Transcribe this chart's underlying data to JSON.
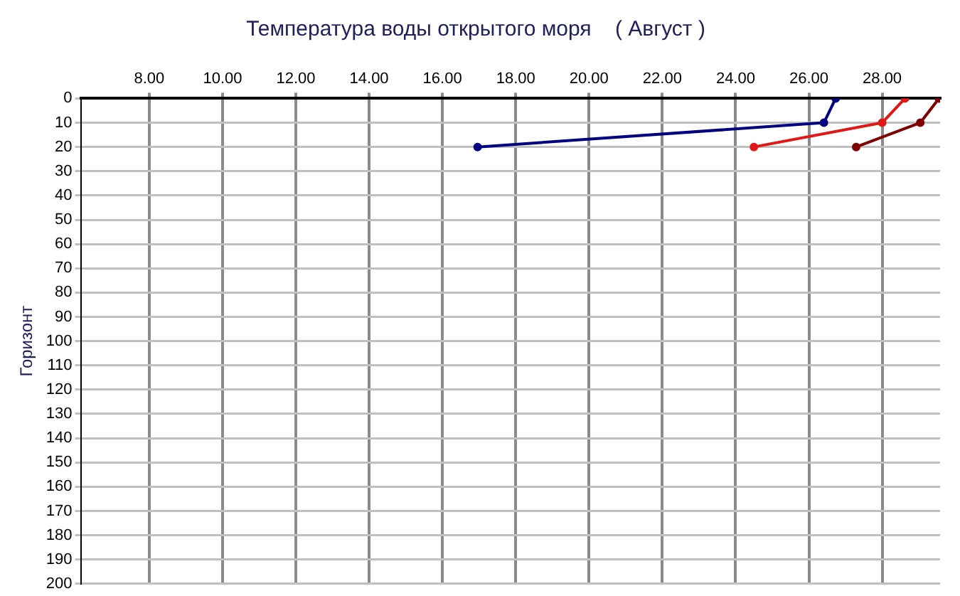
{
  "chart_data": {
    "type": "line",
    "title": "Температура воды открытого моря    ( Август )",
    "ylabel": "Горизонт",
    "series": [
      {
        "color": "#000080",
        "x": [
          26.73,
          26.41,
          16.96
        ],
        "values": [
          0,
          10,
          20
        ]
      },
      {
        "color": "#e01818",
        "x": [
          28.62,
          28.0,
          24.5
        ],
        "values": [
          0,
          10,
          20
        ]
      },
      {
        "color": "#800000",
        "x": [
          29.55,
          29.04,
          27.29
        ],
        "values": [
          0,
          10,
          20
        ]
      }
    ],
    "xlim": [
      6.13,
      29.58
    ],
    "xticks": [
      {
        "value": 8,
        "label": "8.00"
      },
      {
        "value": 10,
        "label": "10.00"
      },
      {
        "value": 12,
        "label": "12.00"
      },
      {
        "value": 14,
        "label": "14.00"
      },
      {
        "value": 16,
        "label": "16.00"
      },
      {
        "value": 18,
        "label": "18.00"
      },
      {
        "value": 20,
        "label": "20.00"
      },
      {
        "value": 22,
        "label": "22.00"
      },
      {
        "value": 24,
        "label": "24.00"
      },
      {
        "value": 26,
        "label": "26.00"
      },
      {
        "value": 28,
        "label": "28.00"
      }
    ],
    "ylim": [
      200,
      0
    ],
    "yticks": [
      0,
      10,
      20,
      30,
      40,
      50,
      60,
      70,
      80,
      90,
      100,
      110,
      120,
      130,
      140,
      150,
      160,
      170,
      180,
      190,
      200
    ],
    "grid": true,
    "legend": false,
    "marker": "circle",
    "line_style": "solid"
  }
}
